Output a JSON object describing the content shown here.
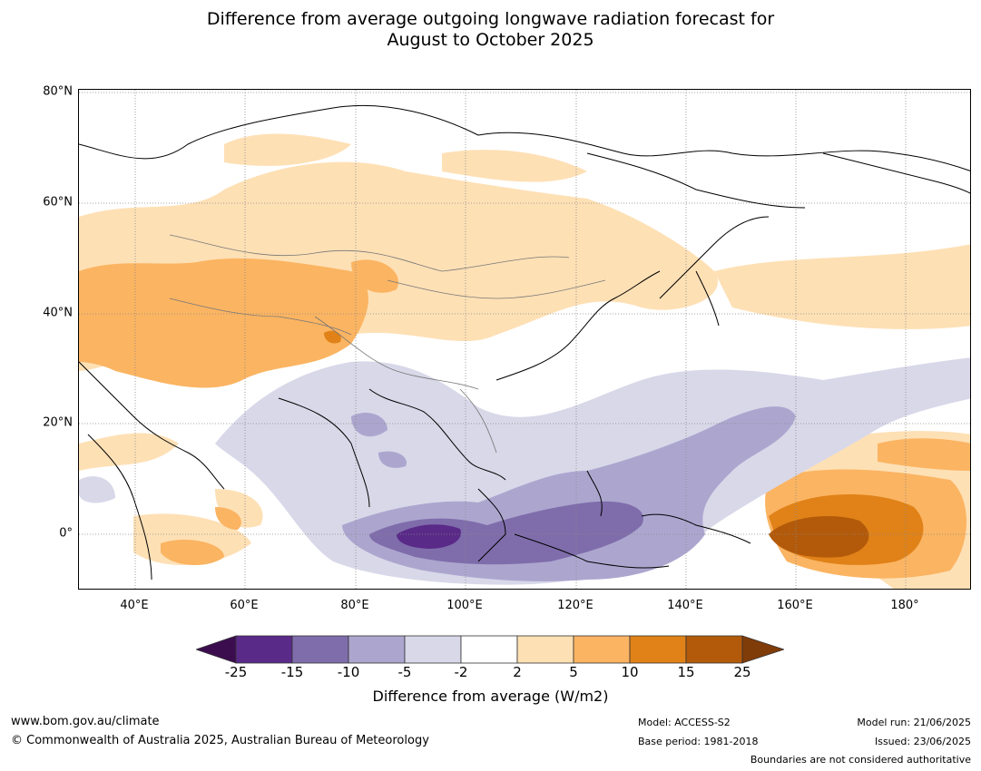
{
  "title_line1": "Difference from average outgoing longwave radiation forecast for",
  "title_line2": "August to October 2025",
  "map": {
    "lat_labels": [
      "80°N",
      "60°N",
      "40°N",
      "20°N",
      "0°"
    ],
    "lon_labels": [
      "40°E",
      "60°E",
      "80°E",
      "100°E",
      "120°E",
      "140°E",
      "160°E",
      "180°"
    ]
  },
  "legend": {
    "ticks": [
      "-25",
      "-15",
      "-10",
      "-5",
      "-2",
      "2",
      "5",
      "10",
      "15",
      "25"
    ],
    "colors": [
      "#3b0d4f",
      "#5a2a88",
      "#7f6dab",
      "#aca6cf",
      "#d8d8e9",
      "#ffffff",
      "#fee0b5",
      "#fbb462",
      "#e08218",
      "#b35a0a",
      "#7f3b08"
    ],
    "label": "Difference from average (W/m2)"
  },
  "footer": {
    "url": "www.bom.gov.au/climate",
    "copyright": "© Commonwealth of Australia 2025, Australian Bureau of Meteorology",
    "model": "Model: ACCESS-S2",
    "base_period": "Base period: 1981-2018",
    "model_run": "Model run: 21/06/2025",
    "issued": "Issued: 23/06/2025",
    "disclaimer": "Boundaries are not considered authoritative"
  }
}
